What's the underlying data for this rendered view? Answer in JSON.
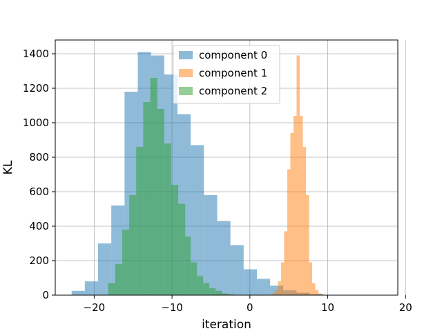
{
  "chart_data": {
    "type": "histogram",
    "xlabel": "iteration",
    "ylabel": "KL",
    "xlim": [
      -25,
      19
    ],
    "ylim": [
      0,
      1480
    ],
    "x_ticks": [
      -20,
      -10,
      0,
      10,
      20
    ],
    "x_tick_labels": [
      "−20",
      "−10",
      "0",
      "10",
      "20"
    ],
    "y_ticks": [
      0,
      200,
      400,
      600,
      800,
      1000,
      1200,
      1400
    ],
    "y_tick_labels": [
      "0",
      "200",
      "400",
      "600",
      "800",
      "1000",
      "1200",
      "1400"
    ],
    "grid": true,
    "legend_position": "upper-center",
    "series": [
      {
        "name": "component 0",
        "color": "#1f77b4",
        "opacity": 0.5,
        "bin_edges": [
          -22.9,
          -21.2,
          -19.5,
          -17.8,
          -16.1,
          -14.4,
          -12.7,
          -11.0,
          -9.3,
          -7.6,
          -5.9,
          -4.2,
          -2.5,
          -0.8,
          0.9,
          2.6,
          4.3,
          6.0,
          7.7,
          9.4,
          11.1
        ],
        "counts": [
          25,
          80,
          300,
          520,
          1180,
          1410,
          1390,
          1280,
          1050,
          870,
          580,
          430,
          290,
          150,
          95,
          55,
          28,
          14,
          6,
          2
        ]
      },
      {
        "name": "component 1",
        "color": "#ff7f0e",
        "opacity": 0.5,
        "bin_edges": [
          2.8,
          3.2,
          3.6,
          4.0,
          4.4,
          4.8,
          5.2,
          5.6,
          6.0,
          6.4,
          6.8,
          7.2,
          7.6,
          8.0,
          8.4,
          8.8,
          9.2,
          9.6
        ],
        "counts": [
          10,
          30,
          80,
          190,
          370,
          730,
          940,
          1040,
          1390,
          1040,
          860,
          580,
          190,
          70,
          30,
          10,
          3
        ]
      },
      {
        "name": "component 2",
        "color": "#2ca02c",
        "opacity": 0.5,
        "bin_edges": [
          -18.2,
          -17.3,
          -16.4,
          -15.5,
          -14.6,
          -13.7,
          -12.8,
          -11.9,
          -11.0,
          -10.1,
          -9.2,
          -8.3,
          -7.6,
          -6.8,
          -6.0,
          -5.2,
          -4.4,
          -3.6,
          -2.8,
          -2.0,
          -1.2
        ],
        "counts": [
          70,
          180,
          380,
          580,
          860,
          1120,
          1260,
          1080,
          880,
          640,
          530,
          340,
          190,
          110,
          70,
          40,
          25,
          10,
          5,
          2
        ]
      }
    ]
  }
}
